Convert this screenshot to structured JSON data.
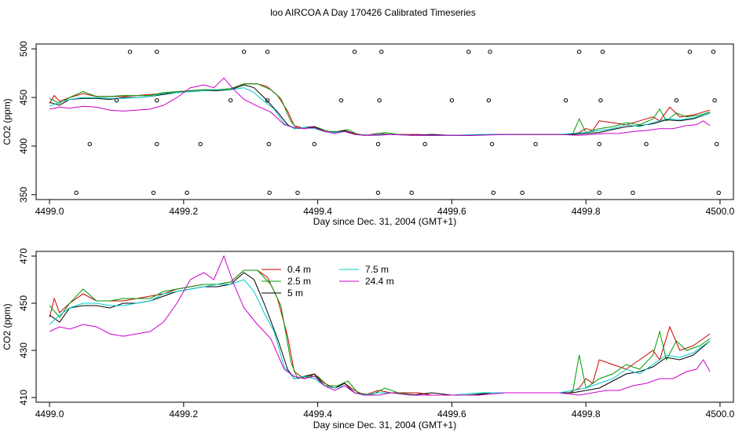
{
  "title": "loo AIRCOA A  Day 170426  Calibrated Timeseries",
  "colors": {
    "0.4 m": "#cc0000",
    "2.5 m": "#009900",
    "5 m": "#000000",
    "7.5 m": "#00cccc",
    "24.4 m": "#cc00cc",
    "flags": "#000000"
  },
  "chart_data": [
    {
      "type": "line",
      "xlabel": "Day since Dec. 31, 2004 (GMT+1)",
      "ylabel": "CO2 (ppm)",
      "xlim": [
        4498.98,
        4500.02
      ],
      "ylim": [
        345,
        505
      ],
      "xticks": [
        "4499.0",
        "4499.2",
        "4499.4",
        "4499.6",
        "4499.8",
        "4500.0"
      ],
      "xtick_values": [
        4499.0,
        4499.2,
        4499.4,
        4499.6,
        4499.8,
        4500.0
      ],
      "yticks": [
        "350",
        "400",
        "450",
        "500"
      ],
      "ytick_values": [
        350,
        400,
        450,
        500
      ],
      "grid": false,
      "legend": "none",
      "flags": [
        [
          4499.04,
          352
        ],
        [
          4499.06,
          402
        ],
        [
          4499.1,
          447
        ],
        [
          4499.12,
          497
        ],
        [
          4499.155,
          352
        ],
        [
          4499.16,
          402
        ],
        [
          4499.16,
          447
        ],
        [
          4499.16,
          497
        ],
        [
          4499.205,
          352
        ],
        [
          4499.225,
          402
        ],
        [
          4499.27,
          447
        ],
        [
          4499.29,
          497
        ],
        [
          4499.325,
          497
        ],
        [
          4499.325,
          447
        ],
        [
          4499.327,
          402
        ],
        [
          4499.328,
          352
        ],
        [
          4499.37,
          352
        ],
        [
          4499.395,
          402
        ],
        [
          4499.435,
          447
        ],
        [
          4499.455,
          497
        ],
        [
          4499.49,
          352
        ],
        [
          4499.49,
          402
        ],
        [
          4499.492,
          447
        ],
        [
          4499.495,
          497
        ],
        [
          4499.54,
          352
        ],
        [
          4499.56,
          402
        ],
        [
          4499.6,
          447
        ],
        [
          4499.625,
          497
        ],
        [
          4499.655,
          447
        ],
        [
          4499.657,
          497
        ],
        [
          4499.66,
          402
        ],
        [
          4499.662,
          352
        ],
        [
          4499.705,
          352
        ],
        [
          4499.725,
          402
        ],
        [
          4499.77,
          447
        ],
        [
          4499.79,
          497
        ],
        [
          4499.82,
          352
        ],
        [
          4499.82,
          402
        ],
        [
          4499.822,
          447
        ],
        [
          4499.825,
          497
        ],
        [
          4499.87,
          352
        ],
        [
          4499.89,
          402
        ],
        [
          4499.935,
          447
        ],
        [
          4499.955,
          497
        ],
        [
          4499.99,
          497
        ],
        [
          4499.992,
          447
        ],
        [
          4499.995,
          402
        ],
        [
          4499.998,
          352
        ]
      ]
    },
    {
      "type": "line",
      "xlabel": "Day since Dec. 31, 2004 (GMT+1)",
      "ylabel": "CO2 (ppm)",
      "xlim": [
        4498.98,
        4500.02
      ],
      "ylim": [
        408,
        472
      ],
      "xticks": [
        "4499.0",
        "4499.2",
        "4499.4",
        "4499.6",
        "4499.8",
        "4500.0"
      ],
      "xtick_values": [
        4499.0,
        4499.2,
        4499.4,
        4499.6,
        4499.8,
        4500.0
      ],
      "yticks": [
        "410",
        "430",
        "450",
        "470"
      ],
      "ytick_values": [
        410,
        430,
        450,
        470
      ],
      "grid": false,
      "legend": "top-center"
    }
  ],
  "series": [
    {
      "name": "0.4 m",
      "points": [
        [
          4499.0,
          444
        ],
        [
          4499.007,
          452
        ],
        [
          4499.015,
          446
        ],
        [
          4499.03,
          450
        ],
        [
          4499.05,
          454
        ],
        [
          4499.07,
          451
        ],
        [
          4499.09,
          451
        ],
        [
          4499.11,
          451
        ],
        [
          4499.13,
          452
        ],
        [
          4499.15,
          453
        ],
        [
          4499.17,
          454
        ],
        [
          4499.19,
          456
        ],
        [
          4499.21,
          457
        ],
        [
          4499.23,
          458
        ],
        [
          4499.25,
          458
        ],
        [
          4499.27,
          459
        ],
        [
          4499.29,
          464
        ],
        [
          4499.31,
          464
        ],
        [
          4499.325,
          461
        ],
        [
          4499.34,
          452
        ],
        [
          4499.355,
          436
        ],
        [
          4499.365,
          421
        ],
        [
          4499.38,
          418
        ],
        [
          4499.395,
          420
        ],
        [
          4499.41,
          416
        ],
        [
          4499.425,
          414
        ],
        [
          4499.44,
          416
        ],
        [
          4499.455,
          413
        ],
        [
          4499.47,
          411
        ],
        [
          4499.49,
          413
        ],
        [
          4499.51,
          412
        ],
        [
          4499.53,
          412
        ],
        [
          4499.55,
          412
        ],
        [
          4499.57,
          411
        ],
        [
          4499.6,
          411
        ],
        [
          4499.63,
          411
        ],
        [
          4499.66,
          412
        ],
        [
          4499.69,
          412
        ],
        [
          4499.72,
          412
        ],
        [
          4499.75,
          412
        ],
        [
          4499.775,
          412
        ],
        [
          4499.79,
          414
        ],
        [
          4499.8,
          418
        ],
        [
          4499.81,
          416
        ],
        [
          4499.82,
          426
        ],
        [
          4499.84,
          424
        ],
        [
          4499.86,
          422
        ],
        [
          4499.88,
          426
        ],
        [
          4499.9,
          430
        ],
        [
          4499.91,
          426
        ],
        [
          4499.925,
          440
        ],
        [
          4499.94,
          430
        ],
        [
          4499.96,
          432
        ],
        [
          4499.985,
          437
        ]
      ]
    },
    {
      "name": "2.5 m",
      "points": [
        [
          4499.0,
          449
        ],
        [
          4499.015,
          444
        ],
        [
          4499.03,
          450
        ],
        [
          4499.05,
          456
        ],
        [
          4499.07,
          451
        ],
        [
          4499.09,
          451
        ],
        [
          4499.11,
          452
        ],
        [
          4499.13,
          452
        ],
        [
          4499.15,
          452
        ],
        [
          4499.17,
          455
        ],
        [
          4499.19,
          456
        ],
        [
          4499.21,
          457
        ],
        [
          4499.23,
          458
        ],
        [
          4499.25,
          458
        ],
        [
          4499.27,
          459
        ],
        [
          4499.29,
          464
        ],
        [
          4499.31,
          464
        ],
        [
          4499.33,
          458
        ],
        [
          4499.345,
          449
        ],
        [
          4499.36,
          425
        ],
        [
          4499.37,
          418
        ],
        [
          4499.385,
          419
        ],
        [
          4499.4,
          419
        ],
        [
          4499.415,
          415
        ],
        [
          4499.43,
          415
        ],
        [
          4499.445,
          417
        ],
        [
          4499.46,
          412
        ],
        [
          4499.48,
          411
        ],
        [
          4499.5,
          414
        ],
        [
          4499.52,
          412
        ],
        [
          4499.55,
          411
        ],
        [
          4499.58,
          411
        ],
        [
          4499.62,
          411
        ],
        [
          4499.66,
          412
        ],
        [
          4499.7,
          412
        ],
        [
          4499.74,
          412
        ],
        [
          4499.77,
          412
        ],
        [
          4499.78,
          412
        ],
        [
          4499.79,
          428
        ],
        [
          4499.8,
          414
        ],
        [
          4499.82,
          418
        ],
        [
          4499.84,
          420
        ],
        [
          4499.86,
          424
        ],
        [
          4499.88,
          422
        ],
        [
          4499.9,
          428
        ],
        [
          4499.91,
          438
        ],
        [
          4499.92,
          426
        ],
        [
          4499.935,
          434
        ],
        [
          4499.95,
          430
        ],
        [
          4499.97,
          432
        ],
        [
          4499.985,
          435
        ]
      ]
    },
    {
      "name": "5 m",
      "points": [
        [
          4499.0,
          445
        ],
        [
          4499.015,
          442
        ],
        [
          4499.03,
          448
        ],
        [
          4499.05,
          449
        ],
        [
          4499.07,
          449
        ],
        [
          4499.09,
          448
        ],
        [
          4499.11,
          450
        ],
        [
          4499.13,
          450
        ],
        [
          4499.15,
          451
        ],
        [
          4499.17,
          453
        ],
        [
          4499.19,
          455
        ],
        [
          4499.21,
          456
        ],
        [
          4499.23,
          457
        ],
        [
          4499.25,
          457
        ],
        [
          4499.27,
          458
        ],
        [
          4499.29,
          463
        ],
        [
          4499.305,
          460
        ],
        [
          4499.32,
          450
        ],
        [
          4499.34,
          435
        ],
        [
          4499.355,
          422
        ],
        [
          4499.365,
          418
        ],
        [
          4499.38,
          419
        ],
        [
          4499.395,
          420
        ],
        [
          4499.41,
          415
        ],
        [
          4499.425,
          414
        ],
        [
          4499.44,
          416
        ],
        [
          4499.455,
          412
        ],
        [
          4499.47,
          411
        ],
        [
          4499.49,
          412
        ],
        [
          4499.51,
          412
        ],
        [
          4499.54,
          411
        ],
        [
          4499.57,
          412
        ],
        [
          4499.6,
          411
        ],
        [
          4499.63,
          411
        ],
        [
          4499.66,
          412
        ],
        [
          4499.7,
          412
        ],
        [
          4499.74,
          412
        ],
        [
          4499.78,
          412
        ],
        [
          4499.8,
          413
        ],
        [
          4499.82,
          414
        ],
        [
          4499.84,
          417
        ],
        [
          4499.86,
          420
        ],
        [
          4499.88,
          421
        ],
        [
          4499.9,
          423
        ],
        [
          4499.92,
          427
        ],
        [
          4499.94,
          426
        ],
        [
          4499.96,
          428
        ],
        [
          4499.985,
          434
        ]
      ]
    },
    {
      "name": "7.5 m",
      "points": [
        [
          4499.0,
          441
        ],
        [
          4499.015,
          445
        ],
        [
          4499.03,
          448
        ],
        [
          4499.05,
          450
        ],
        [
          4499.07,
          450
        ],
        [
          4499.09,
          449
        ],
        [
          4499.11,
          449
        ],
        [
          4499.13,
          450
        ],
        [
          4499.15,
          451
        ],
        [
          4499.17,
          454
        ],
        [
          4499.19,
          455
        ],
        [
          4499.21,
          456
        ],
        [
          4499.23,
          457
        ],
        [
          4499.25,
          458
        ],
        [
          4499.27,
          458
        ],
        [
          4499.29,
          460
        ],
        [
          4499.305,
          455
        ],
        [
          4499.32,
          446
        ],
        [
          4499.335,
          438
        ],
        [
          4499.35,
          423
        ],
        [
          4499.365,
          418
        ],
        [
          4499.38,
          419
        ],
        [
          4499.395,
          418
        ],
        [
          4499.41,
          415
        ],
        [
          4499.425,
          414
        ],
        [
          4499.44,
          415
        ],
        [
          4499.455,
          412
        ],
        [
          4499.47,
          411
        ],
        [
          4499.49,
          412
        ],
        [
          4499.51,
          412
        ],
        [
          4499.54,
          411
        ],
        [
          4499.57,
          411
        ],
        [
          4499.6,
          411
        ],
        [
          4499.64,
          412
        ],
        [
          4499.68,
          412
        ],
        [
          4499.72,
          412
        ],
        [
          4499.76,
          412
        ],
        [
          4499.78,
          413
        ],
        [
          4499.8,
          414
        ],
        [
          4499.82,
          416
        ],
        [
          4499.84,
          418
        ],
        [
          4499.86,
          422
        ],
        [
          4499.88,
          420
        ],
        [
          4499.9,
          424
        ],
        [
          4499.92,
          428
        ],
        [
          4499.94,
          427
        ],
        [
          4499.96,
          429
        ],
        [
          4499.985,
          434
        ]
      ]
    },
    {
      "name": "24.4 m",
      "points": [
        [
          4499.0,
          438
        ],
        [
          4499.015,
          440
        ],
        [
          4499.03,
          439
        ],
        [
          4499.05,
          441
        ],
        [
          4499.07,
          440
        ],
        [
          4499.09,
          437
        ],
        [
          4499.11,
          436
        ],
        [
          4499.13,
          437
        ],
        [
          4499.15,
          438
        ],
        [
          4499.17,
          442
        ],
        [
          4499.19,
          450
        ],
        [
          4499.21,
          460
        ],
        [
          4499.23,
          463
        ],
        [
          4499.245,
          460
        ],
        [
          4499.26,
          470
        ],
        [
          4499.275,
          458
        ],
        [
          4499.29,
          448
        ],
        [
          4499.31,
          441
        ],
        [
          4499.33,
          435
        ],
        [
          4499.35,
          422
        ],
        [
          4499.365,
          419
        ],
        [
          4499.38,
          418
        ],
        [
          4499.395,
          419
        ],
        [
          4499.41,
          415
        ],
        [
          4499.425,
          413
        ],
        [
          4499.44,
          415
        ],
        [
          4499.455,
          412
        ],
        [
          4499.47,
          411
        ],
        [
          4499.49,
          411
        ],
        [
          4499.51,
          412
        ],
        [
          4499.54,
          411
        ],
        [
          4499.57,
          411
        ],
        [
          4499.6,
          411
        ],
        [
          4499.64,
          411
        ],
        [
          4499.68,
          412
        ],
        [
          4499.72,
          412
        ],
        [
          4499.76,
          412
        ],
        [
          4499.79,
          411
        ],
        [
          4499.81,
          412
        ],
        [
          4499.83,
          413
        ],
        [
          4499.85,
          413
        ],
        [
          4499.87,
          415
        ],
        [
          4499.89,
          416
        ],
        [
          4499.91,
          418
        ],
        [
          4499.93,
          418
        ],
        [
          4499.95,
          421
        ],
        [
          4499.965,
          422
        ],
        [
          4499.975,
          426
        ],
        [
          4499.985,
          421
        ]
      ]
    }
  ]
}
